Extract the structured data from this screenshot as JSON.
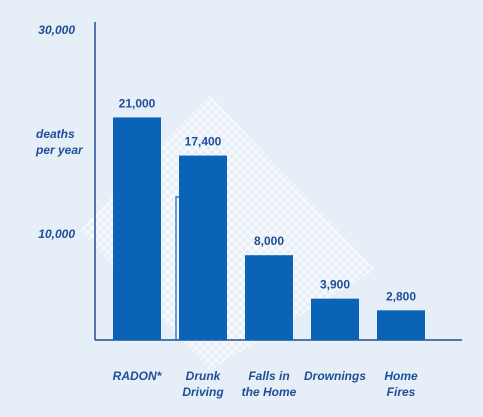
{
  "chart_data": {
    "type": "bar",
    "categories": [
      [
        "RADON*"
      ],
      [
        "Drunk",
        "Driving"
      ],
      [
        "Falls in",
        "the Home"
      ],
      [
        "Drownings"
      ],
      [
        "Home",
        "Fires"
      ]
    ],
    "values": [
      21000,
      17400,
      8000,
      3900,
      2800
    ],
    "value_labels": [
      "21,000",
      "17,400",
      "8,000",
      "3,900",
      "2,800"
    ],
    "y_ticks": [
      {
        "value": 30000,
        "label": "30,000"
      },
      {
        "value": 10000,
        "label": "10,000"
      }
    ],
    "ylabel": [
      "deaths",
      "per year"
    ],
    "title": "",
    "xlabel": "",
    "ylim": [
      0,
      30000
    ],
    "grid": false,
    "colors": {
      "bar": "#0a63b6",
      "text": "#1f4e96",
      "axis": "#1f4e96",
      "background": "#e6eef8",
      "watermark": "#ffffff"
    }
  }
}
